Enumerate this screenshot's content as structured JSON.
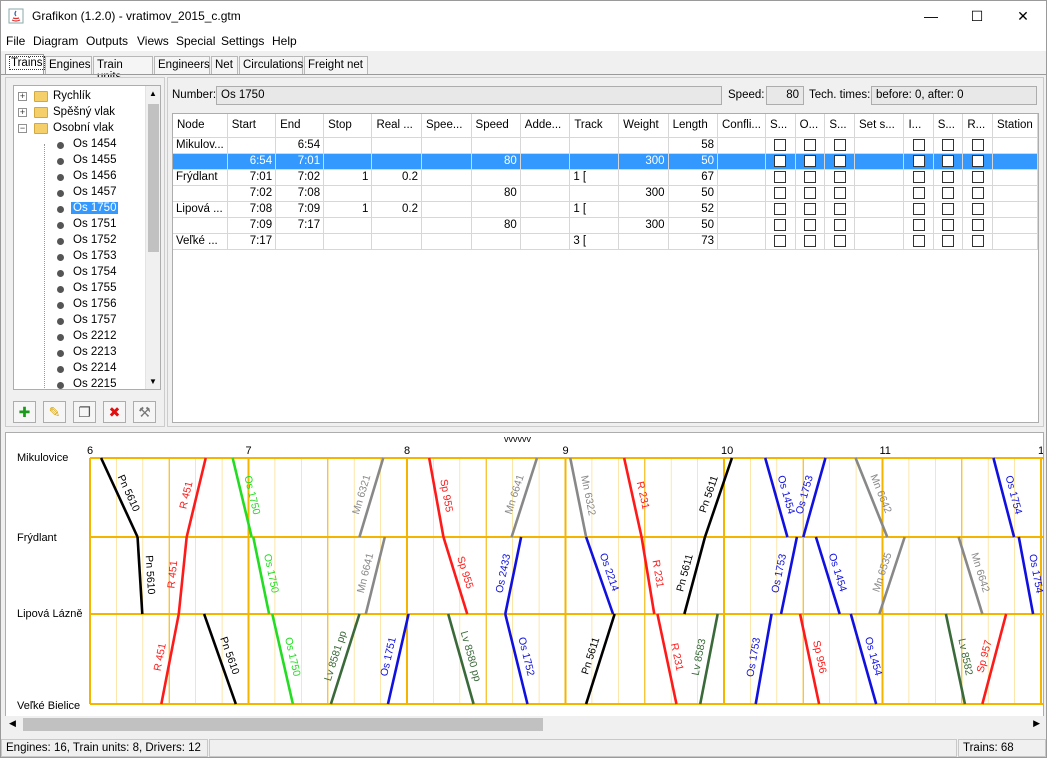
{
  "window": {
    "title": "Grafikon (1.2.0) - vratimov_2015_c.gtm",
    "minimize_glyph": "—",
    "maximize_glyph": "☐",
    "close_glyph": "✕"
  },
  "menu": [
    "File",
    "Diagram",
    "Outputs",
    "Views",
    "Special",
    "Settings",
    "Help"
  ],
  "tabs": [
    "Trains",
    "Engines",
    "Train units",
    "Engineers",
    "Net",
    "Circulations",
    "Freight net"
  ],
  "tree": {
    "groups": [
      "Rychlík",
      "Spěšný vlak",
      "Osobní vlak"
    ],
    "trains": [
      "Os 1454",
      "Os 1455",
      "Os 1456",
      "Os 1457",
      "Os 1750",
      "Os 1751",
      "Os 1752",
      "Os 1753",
      "Os 1754",
      "Os 1755",
      "Os 1756",
      "Os 1757",
      "Os 2212",
      "Os 2213",
      "Os 2214",
      "Os 2215"
    ],
    "selected": "Os 1750"
  },
  "toolbar_icons": [
    "add-icon",
    "edit-icon",
    "copy-icon",
    "delete-icon",
    "tools-icon"
  ],
  "train_info": {
    "number_label": "Number:",
    "number_value": "Os 1750",
    "speed_label": "Speed:",
    "speed_value": "80",
    "tech_label": "Tech. times:",
    "tech_value": "before: 0, after: 0"
  },
  "grid": {
    "columns": [
      "Node",
      "Start",
      "End",
      "Stop",
      "Real ...",
      "Spee...",
      "Speed",
      "Adde...",
      "Track",
      "Weight",
      "Length",
      "Confli...",
      "S...",
      "O...",
      "S...",
      "Set s...",
      "I...",
      "S...",
      "R...",
      "Station"
    ],
    "rows": [
      {
        "node": "Mikulov...",
        "start": "",
        "end": "6:54",
        "stop": "",
        "real": "",
        "spee": "",
        "speed": "",
        "added": "",
        "track": "",
        "weight": "",
        "length": "58",
        "selected": false
      },
      {
        "node": "",
        "start": "6:54",
        "end": "7:01",
        "stop": "",
        "real": "",
        "spee": "",
        "speed": "80",
        "added": "",
        "track": "",
        "weight": "300",
        "length": "50",
        "selected": true
      },
      {
        "node": "Frýdlant",
        "start": "7:01",
        "end": "7:02",
        "stop": "1",
        "real": "0.2",
        "spee": "",
        "speed": "",
        "added": "",
        "track": "1 [",
        "weight": "",
        "length": "67",
        "selected": false
      },
      {
        "node": "",
        "start": "7:02",
        "end": "7:08",
        "stop": "",
        "real": "",
        "spee": "",
        "speed": "80",
        "added": "",
        "track": "",
        "weight": "300",
        "length": "50",
        "selected": false
      },
      {
        "node": "Lipová ...",
        "start": "7:08",
        "end": "7:09",
        "stop": "1",
        "real": "0.2",
        "spee": "",
        "speed": "",
        "added": "",
        "track": "1 [",
        "weight": "",
        "length": "52",
        "selected": false
      },
      {
        "node": "",
        "start": "7:09",
        "end": "7:17",
        "stop": "",
        "real": "",
        "spee": "",
        "speed": "80",
        "added": "",
        "track": "",
        "weight": "300",
        "length": "50",
        "selected": false
      },
      {
        "node": "Veľké ...",
        "start": "7:17",
        "end": "",
        "stop": "",
        "real": "",
        "spee": "",
        "speed": "",
        "added": "",
        "track": "3 [",
        "weight": "",
        "length": "73",
        "selected": false
      }
    ]
  },
  "diagram": {
    "stations": [
      "Mikulovice",
      "Frýdlant",
      "Lipová Lázně",
      "Veľké Bielice"
    ],
    "hours": [
      "6",
      "7",
      "8",
      "9",
      "10",
      "11",
      "1"
    ],
    "marker": "vvvvvv",
    "colors": {
      "grid": "#f5b400",
      "black": "#000000",
      "red": "#ff1a1a",
      "green": "#22dd22",
      "blue": "#1010e0",
      "gray": "#888888",
      "darkgreen": "#3a6a3a"
    },
    "trains": [
      {
        "name": "Pn 5610",
        "color": "black",
        "seg": 0,
        "t0": 6.07,
        "t1": 6.3
      },
      {
        "name": "Pn 5610",
        "color": "black",
        "seg": 1,
        "t0": 6.3,
        "t1": 6.33
      },
      {
        "name": "Pn 5610",
        "color": "black",
        "seg": 2,
        "t0": 6.72,
        "t1": 6.92
      },
      {
        "name": "R 451",
        "color": "red",
        "seg": 0,
        "t0": 6.73,
        "t1": 6.61
      },
      {
        "name": "R 451",
        "color": "red",
        "seg": 1,
        "t0": 6.61,
        "t1": 6.56
      },
      {
        "name": "R 451",
        "color": "red",
        "seg": 2,
        "t0": 6.56,
        "t1": 6.45
      },
      {
        "name": "Os 1750",
        "color": "green",
        "seg": 0,
        "t0": 6.9,
        "t1": 7.02
      },
      {
        "name": "Os 1750",
        "color": "green",
        "seg": 1,
        "t0": 7.03,
        "t1": 7.13
      },
      {
        "name": "Os 1750",
        "color": "green",
        "seg": 2,
        "t0": 7.15,
        "t1": 7.28
      },
      {
        "name": "Mn 6321",
        "color": "gray",
        "seg": 0,
        "t0": 7.85,
        "t1": 7.7
      },
      {
        "name": "Mn 6641",
        "color": "gray",
        "seg": 1,
        "t0": 7.86,
        "t1": 7.74
      },
      {
        "name": "Lv 8581 pp",
        "color": "darkgreen",
        "seg": 2,
        "t0": 7.7,
        "t1": 7.52
      },
      {
        "name": "Os 1751",
        "color": "blue",
        "seg": 2,
        "t0": 8.01,
        "t1": 7.88
      },
      {
        "name": "Sp 955",
        "color": "red",
        "seg": 0,
        "t0": 8.14,
        "t1": 8.23
      },
      {
        "name": "Sp 955",
        "color": "red",
        "seg": 1,
        "t0": 8.23,
        "t1": 8.38
      },
      {
        "name": "Lv 8580 pp",
        "color": "darkgreen",
        "seg": 2,
        "t0": 8.26,
        "t1": 8.42
      },
      {
        "name": "Mn 6641",
        "color": "gray",
        "seg": 0,
        "t0": 8.82,
        "t1": 8.66
      },
      {
        "name": "Os 2433",
        "color": "blue",
        "seg": 1,
        "t0": 8.72,
        "t1": 8.62
      },
      {
        "name": "Os 1752",
        "color": "blue",
        "seg": 2,
        "t0": 8.62,
        "t1": 8.76
      },
      {
        "name": "Mn 6322",
        "color": "gray",
        "seg": 0,
        "t0": 9.03,
        "t1": 9.13
      },
      {
        "name": "Os 2214",
        "color": "blue",
        "seg": 1,
        "t0": 9.13,
        "t1": 9.3
      },
      {
        "name": "Pn 5611",
        "color": "black",
        "seg": 2,
        "t0": 9.31,
        "t1": 9.13
      },
      {
        "name": "R 231",
        "color": "red",
        "seg": 0,
        "t0": 9.37,
        "t1": 9.48
      },
      {
        "name": "R 231",
        "color": "red",
        "seg": 1,
        "t0": 9.48,
        "t1": 9.56
      },
      {
        "name": "R 231",
        "color": "red",
        "seg": 2,
        "t0": 9.58,
        "t1": 9.7
      },
      {
        "name": "Pn 5611",
        "color": "black",
        "seg": 0,
        "t0": 10.05,
        "t1": 9.88
      },
      {
        "name": "Pn 5611",
        "color": "black",
        "seg": 1,
        "t0": 9.88,
        "t1": 9.75
      },
      {
        "name": "Lv 8583",
        "color": "darkgreen",
        "seg": 2,
        "t0": 9.96,
        "t1": 9.85
      },
      {
        "name": "Os 1454",
        "color": "blue",
        "seg": 0,
        "t0": 10.26,
        "t1": 10.4
      },
      {
        "name": "Os 1753",
        "color": "blue",
        "seg": 0,
        "t0": 10.64,
        "t1": 10.5
      },
      {
        "name": "Os 1753",
        "color": "blue",
        "seg": 1,
        "t0": 10.46,
        "t1": 10.36
      },
      {
        "name": "Os 1753",
        "color": "blue",
        "seg": 2,
        "t0": 10.3,
        "t1": 10.2
      },
      {
        "name": "Os 1454",
        "color": "blue",
        "seg": 1,
        "t0": 10.58,
        "t1": 10.73
      },
      {
        "name": "Sp 956",
        "color": "red",
        "seg": 2,
        "t0": 10.48,
        "t1": 10.6
      },
      {
        "name": "Mn 6642",
        "color": "gray",
        "seg": 0,
        "t0": 10.83,
        "t1": 11.03
      },
      {
        "name": "Mn 6535",
        "color": "gray",
        "seg": 1,
        "t0": 11.14,
        "t1": 10.98
      },
      {
        "name": "Os 1454",
        "color": "blue",
        "seg": 2,
        "t0": 10.8,
        "t1": 10.96
      },
      {
        "name": "Mn 6642",
        "color": "gray",
        "seg": 1,
        "t0": 11.48,
        "t1": 11.63
      },
      {
        "name": "Lv 8582",
        "color": "darkgreen",
        "seg": 2,
        "t0": 11.4,
        "t1": 11.52
      },
      {
        "name": "Sp 957",
        "color": "red",
        "seg": 2,
        "t0": 11.78,
        "t1": 11.63
      },
      {
        "name": "Os 1754",
        "color": "blue",
        "seg": 0,
        "t0": 11.7,
        "t1": 11.83
      },
      {
        "name": "Os 1754",
        "color": "blue",
        "seg": 1,
        "t0": 11.86,
        "t1": 11.95
      }
    ]
  },
  "status": {
    "left": "Engines: 16, Train units: 8, Drivers: 12",
    "right": "Trains: 68"
  }
}
